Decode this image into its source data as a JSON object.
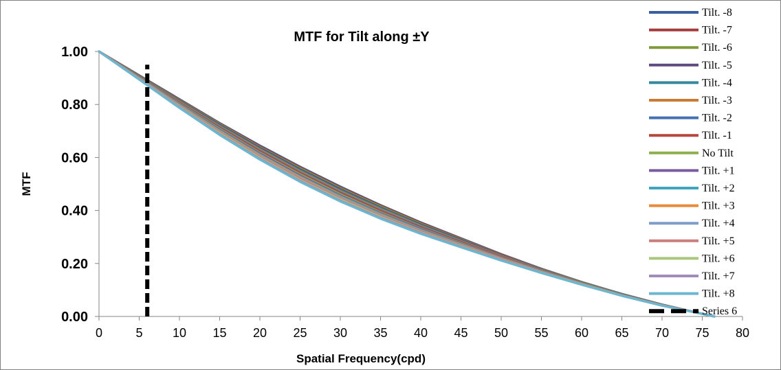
{
  "chart_data": {
    "type": "line",
    "title": "MTF for Tilt along  ±Y",
    "xlabel": "Spatial Frequency(cpd)",
    "ylabel": "MTF",
    "xlim": [
      0,
      80
    ],
    "ylim": [
      0,
      1
    ],
    "x_ticks": [
      "0",
      "5",
      "10",
      "15",
      "20",
      "25",
      "30",
      "35",
      "40",
      "45",
      "50",
      "55",
      "60",
      "65",
      "70",
      "75",
      "80"
    ],
    "y_ticks": [
      "0.00",
      "0.20",
      "0.40",
      "0.60",
      "0.80",
      "1.00"
    ],
    "grid": false,
    "legend_position": "right",
    "x": [
      0,
      5,
      10,
      15,
      20,
      25,
      30,
      35,
      40,
      45,
      50,
      55,
      60,
      65,
      70,
      75,
      76.5
    ],
    "series": [
      {
        "name": "Tilt. -8",
        "color": "#3A5F9E",
        "values": [
          1.0,
          0.91,
          0.82,
          0.73,
          0.645,
          0.565,
          0.49,
          0.42,
          0.355,
          0.295,
          0.235,
          0.18,
          0.13,
          0.085,
          0.045,
          0.01,
          0.0
        ]
      },
      {
        "name": "Tilt. -7",
        "color": "#A13C3A",
        "values": [
          1.0,
          0.909,
          0.818,
          0.728,
          0.642,
          0.562,
          0.487,
          0.418,
          0.353,
          0.293,
          0.234,
          0.179,
          0.129,
          0.084,
          0.044,
          0.01,
          0.0
        ]
      },
      {
        "name": "Tilt. -6",
        "color": "#7F9A3C",
        "values": [
          1.0,
          0.908,
          0.816,
          0.726,
          0.639,
          0.559,
          0.484,
          0.415,
          0.35,
          0.291,
          0.232,
          0.178,
          0.129,
          0.084,
          0.044,
          0.01,
          0.0
        ]
      },
      {
        "name": "Tilt. -5",
        "color": "#5E4A7F",
        "values": [
          1.0,
          0.907,
          0.814,
          0.723,
          0.636,
          0.555,
          0.48,
          0.411,
          0.347,
          0.289,
          0.231,
          0.177,
          0.128,
          0.083,
          0.044,
          0.01,
          0.0
        ]
      },
      {
        "name": "Tilt. -4",
        "color": "#35879B",
        "values": [
          1.0,
          0.906,
          0.812,
          0.72,
          0.632,
          0.551,
          0.476,
          0.408,
          0.344,
          0.286,
          0.229,
          0.176,
          0.127,
          0.083,
          0.043,
          0.01,
          0.0
        ]
      },
      {
        "name": "Tilt. -3",
        "color": "#C97B33",
        "values": [
          1.0,
          0.905,
          0.81,
          0.717,
          0.629,
          0.547,
          0.472,
          0.404,
          0.341,
          0.284,
          0.228,
          0.175,
          0.127,
          0.082,
          0.043,
          0.01,
          0.0
        ]
      },
      {
        "name": "Tilt. -2",
        "color": "#4572B0",
        "values": [
          1.0,
          0.904,
          0.807,
          0.714,
          0.625,
          0.543,
          0.468,
          0.4,
          0.338,
          0.282,
          0.226,
          0.174,
          0.126,
          0.082,
          0.043,
          0.01,
          0.0
        ]
      },
      {
        "name": "Tilt. -1",
        "color": "#B8473F",
        "values": [
          1.0,
          0.903,
          0.805,
          0.711,
          0.622,
          0.54,
          0.465,
          0.397,
          0.335,
          0.28,
          0.225,
          0.173,
          0.125,
          0.081,
          0.043,
          0.01,
          0.0
        ]
      },
      {
        "name": "No Tilt",
        "color": "#8CB04E",
        "values": [
          1.0,
          0.902,
          0.803,
          0.708,
          0.618,
          0.536,
          0.461,
          0.393,
          0.332,
          0.277,
          0.223,
          0.172,
          0.125,
          0.081,
          0.043,
          0.01,
          0.0
        ]
      },
      {
        "name": "Tilt. +1",
        "color": "#7A5B9F",
        "values": [
          1.0,
          0.901,
          0.801,
          0.705,
          0.615,
          0.532,
          0.457,
          0.39,
          0.33,
          0.275,
          0.222,
          0.171,
          0.124,
          0.081,
          0.042,
          0.01,
          0.0
        ]
      },
      {
        "name": "Tilt. +2",
        "color": "#3FA5BE",
        "values": [
          1.0,
          0.9,
          0.799,
          0.702,
          0.611,
          0.528,
          0.454,
          0.387,
          0.327,
          0.273,
          0.22,
          0.17,
          0.123,
          0.08,
          0.042,
          0.01,
          0.0
        ]
      },
      {
        "name": "Tilt. +3",
        "color": "#E98A3A",
        "values": [
          1.0,
          0.899,
          0.797,
          0.699,
          0.608,
          0.525,
          0.45,
          0.384,
          0.324,
          0.271,
          0.219,
          0.169,
          0.123,
          0.08,
          0.042,
          0.01,
          0.0
        ]
      },
      {
        "name": "Tilt. +4",
        "color": "#7F9DC9",
        "values": [
          1.0,
          0.898,
          0.795,
          0.696,
          0.604,
          0.521,
          0.447,
          0.381,
          0.322,
          0.269,
          0.217,
          0.168,
          0.122,
          0.079,
          0.042,
          0.01,
          0.0
        ]
      },
      {
        "name": "Tilt. +5",
        "color": "#CB7E7B",
        "values": [
          1.0,
          0.897,
          0.793,
          0.694,
          0.601,
          0.518,
          0.444,
          0.378,
          0.32,
          0.267,
          0.216,
          0.167,
          0.121,
          0.079,
          0.042,
          0.01,
          0.0
        ]
      },
      {
        "name": "Tilt. +6",
        "color": "#A9C77E",
        "values": [
          1.0,
          0.896,
          0.791,
          0.691,
          0.598,
          0.514,
          0.441,
          0.375,
          0.317,
          0.265,
          0.214,
          0.166,
          0.121,
          0.079,
          0.041,
          0.01,
          0.0
        ]
      },
      {
        "name": "Tilt. +7",
        "color": "#9F8CB9",
        "values": [
          1.0,
          0.895,
          0.789,
          0.688,
          0.595,
          0.511,
          0.437,
          0.372,
          0.315,
          0.263,
          0.213,
          0.165,
          0.12,
          0.078,
          0.041,
          0.01,
          0.0
        ]
      },
      {
        "name": "Tilt. +8",
        "color": "#6BB7D0",
        "values": [
          1.0,
          0.894,
          0.787,
          0.685,
          0.592,
          0.508,
          0.434,
          0.369,
          0.312,
          0.261,
          0.211,
          0.164,
          0.12,
          0.078,
          0.041,
          0.01,
          0.0
        ]
      },
      {
        "name": "Series 6",
        "color": "#000000",
        "dashed": true,
        "x": [
          6,
          6
        ],
        "values": [
          0,
          0.95
        ]
      }
    ]
  }
}
